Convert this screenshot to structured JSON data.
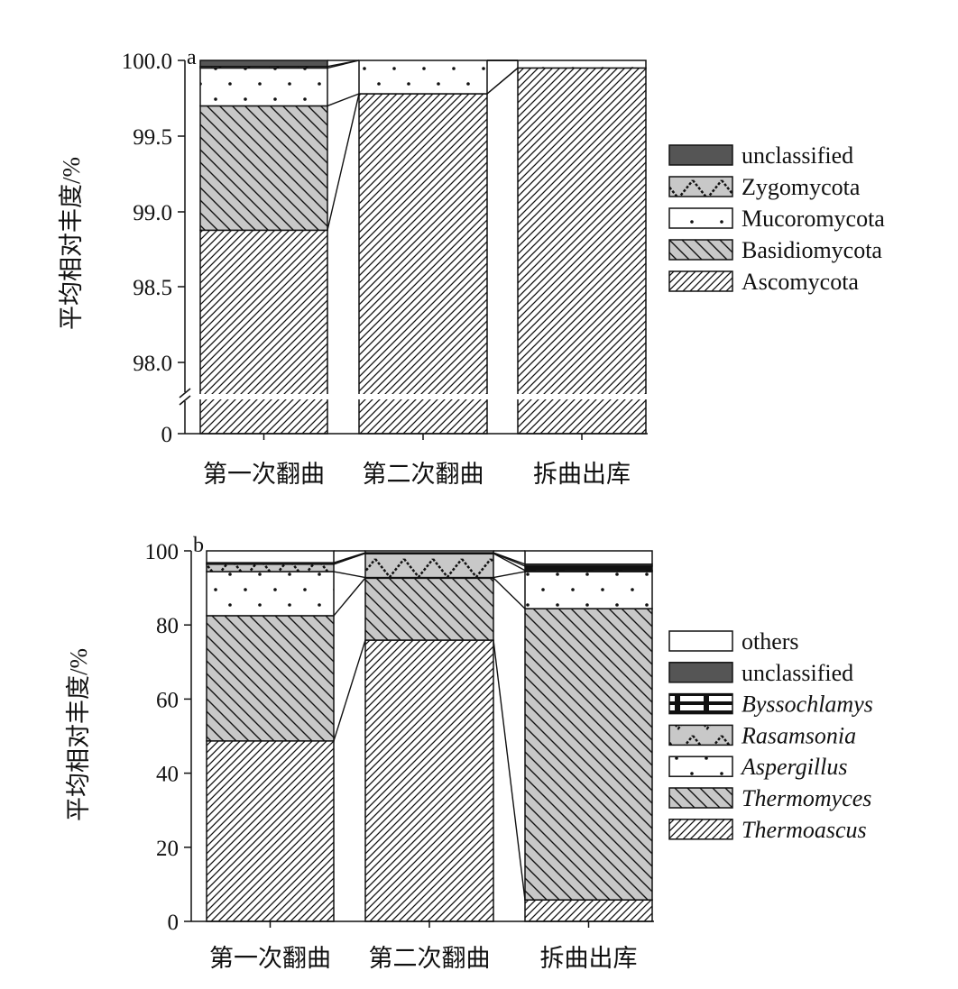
{
  "chart_data": [
    {
      "type": "bar",
      "stacked": true,
      "panel_label": "a",
      "ylabel": "平均相对丰度/%",
      "xlabel": "",
      "categories": [
        "第一次翻曲",
        "第二次翻曲",
        "拆曲出库"
      ],
      "y_ticks": [
        "0",
        "98.0",
        "98.5",
        "99.0",
        "99.5",
        "100.0"
      ],
      "ylim": [
        97.8,
        100
      ],
      "axis_break": true,
      "legend_position": "right",
      "series": [
        {
          "name": "Ascomycota",
          "pattern": "hatch-forward",
          "values": [
            98.88,
            99.78,
            99.95
          ]
        },
        {
          "name": "Basidiomycota",
          "pattern": "hatch-back-gray",
          "values": [
            0.82,
            0,
            0
          ]
        },
        {
          "name": "Mucoromycota",
          "pattern": "dots",
          "values": [
            0.25,
            0.22,
            0.05
          ]
        },
        {
          "name": "Zygomycota",
          "pattern": "zigzag-gray",
          "values": [
            0.01,
            0,
            0
          ]
        },
        {
          "name": "unclassified",
          "pattern": "dark",
          "values": [
            0.04,
            0,
            0
          ]
        }
      ]
    },
    {
      "type": "bar",
      "stacked": true,
      "panel_label": "b",
      "ylabel": "平均相对丰度/%",
      "xlabel": "",
      "categories": [
        "第一次翻曲",
        "第二次翻曲",
        "拆曲出库"
      ],
      "y_ticks": [
        "0",
        "20",
        "40",
        "60",
        "80",
        "100"
      ],
      "ylim": [
        0,
        100
      ],
      "legend_position": "right",
      "series": [
        {
          "name": "Thermoascus",
          "italic": true,
          "pattern": "hatch-forward",
          "values": [
            48.7,
            75.9,
            5.8
          ]
        },
        {
          "name": "Thermomyces",
          "italic": true,
          "pattern": "hatch-back-gray",
          "values": [
            33.8,
            16.8,
            78.6
          ]
        },
        {
          "name": "Aspergillus",
          "italic": true,
          "pattern": "dots",
          "values": [
            11.9,
            0.1,
            10.0
          ]
        },
        {
          "name": "Rasamsonia",
          "italic": true,
          "pattern": "zigzag-gray",
          "values": [
            2.0,
            6.5,
            0.3
          ]
        },
        {
          "name": "Byssochlamys",
          "italic": true,
          "pattern": "dashes",
          "values": [
            0,
            0.1,
            1.2
          ]
        },
        {
          "name": "unclassified",
          "pattern": "dark",
          "values": [
            0.4,
            0.1,
            0.5
          ]
        },
        {
          "name": "others",
          "pattern": "white",
          "values": [
            3.2,
            0.5,
            3.6
          ]
        }
      ]
    }
  ]
}
